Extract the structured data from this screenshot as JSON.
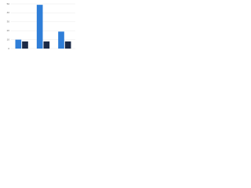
{
  "chart_data": {
    "type": "bar",
    "categories": [
      null,
      null,
      null
    ],
    "series": [
      {
        "color": "#2f7ed8",
        "values": [
          10,
          49,
          19
        ]
      },
      {
        "color": "#1b2a47",
        "values": [
          8,
          8,
          8
        ]
      }
    ],
    "ylim": [
      0,
      50
    ],
    "yticks": [
      0,
      10,
      20,
      30,
      40,
      50
    ],
    "grid": true
  }
}
